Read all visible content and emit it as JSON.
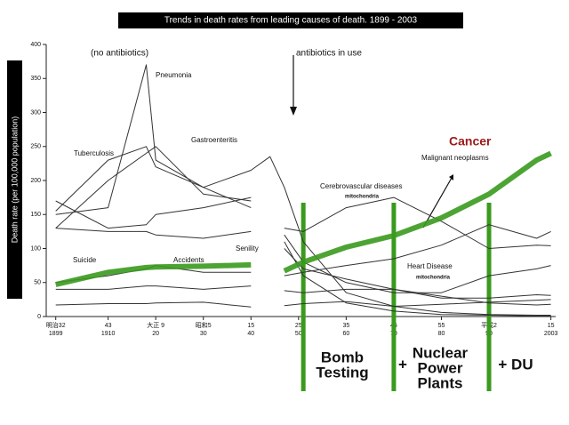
{
  "chart_data": {
    "type": "line",
    "title": "Trends in death rates from leading causes of death. 1899 - 2003",
    "y_label": "Death rate (per 100,000 population)",
    "annotations": [
      "(no antibiotics)",
      "antibiotics in use",
      "Cancer",
      "mitochondria",
      "mitochondria",
      "Bomb",
      "Testing",
      "+",
      "Nuclear",
      "Power",
      "Plants",
      "+ DU"
    ],
    "xlim": [
      1897,
      2004
    ],
    "ylim": [
      0,
      400
    ],
    "yticks": [
      0,
      50,
      100,
      150,
      200,
      250,
      300,
      350,
      400
    ],
    "xticks": [
      {
        "value": 1899,
        "label": "明治32\n1899"
      },
      {
        "value": 1910,
        "label": "43\n1910"
      },
      {
        "value": 1920,
        "label": "大正 9\n20"
      },
      {
        "value": 1930,
        "label": "昭和5\n30"
      },
      {
        "value": 1940,
        "label": "15\n40"
      },
      {
        "value": 1950,
        "label": "25\n50"
      },
      {
        "value": 1960,
        "label": "35\n60"
      },
      {
        "value": 1970,
        "label": "45\n70"
      },
      {
        "value": 1980,
        "label": "55\n80"
      },
      {
        "value": 1990,
        "label": "平成2\n90"
      },
      {
        "value": 2003,
        "label": "15\n2003"
      }
    ],
    "event_years": [
      1951,
      1970,
      1990
    ],
    "event_color": "#3a9a1e",
    "x": [
      1899,
      1910,
      1918,
      1920,
      1930,
      1940,
      1944,
      1947,
      1951,
      1960,
      1970,
      1980,
      1990,
      2000,
      2003
    ],
    "series": [
      {
        "name": "Pneumonia",
        "color": "#333333",
        "values": [
          150,
          160,
          370,
          230,
          190,
          160,
          null,
          120,
          80,
          50,
          35,
          35,
          60,
          70,
          75
        ]
      },
      {
        "name": "Tuberculosis",
        "color": "#333333",
        "values": [
          155,
          230,
          250,
          220,
          190,
          215,
          235,
          190,
          110,
          35,
          15,
          6,
          3,
          2,
          2
        ]
      },
      {
        "name": "Gastroenteritis",
        "color": "#333333",
        "values": [
          130,
          200,
          240,
          250,
          180,
          170,
          null,
          110,
          60,
          20,
          8,
          3,
          2,
          1,
          1
        ]
      },
      {
        "name": "Cerebrovascular diseases",
        "color": "#333333",
        "values": [
          170,
          130,
          135,
          150,
          160,
          175,
          null,
          130,
          125,
          160,
          175,
          140,
          100,
          105,
          104
        ]
      },
      {
        "name": "Heart Disease",
        "color": "#333333",
        "values": [
          50,
          60,
          70,
          75,
          65,
          65,
          null,
          60,
          65,
          75,
          85,
          105,
          135,
          115,
          125
        ]
      },
      {
        "name": "Senility",
        "color": "#333333",
        "values": [
          130,
          125,
          125,
          120,
          115,
          125,
          null,
          100,
          70,
          55,
          40,
          30,
          20,
          17,
          18
        ]
      },
      {
        "name": "Suicide",
        "color": "#333333",
        "values": [
          17,
          19,
          19,
          20,
          21,
          14,
          null,
          16,
          19,
          22,
          15,
          18,
          21,
          24,
          25
        ]
      },
      {
        "name": "Accidents",
        "color": "#333333",
        "values": [
          40,
          40,
          45,
          45,
          40,
          45,
          null,
          38,
          35,
          40,
          40,
          27,
          27,
          32,
          31
        ]
      },
      {
        "name": "Malignant neoplasms",
        "color": "#3a9a1e",
        "values": [
          47,
          65,
          72,
          73,
          74,
          76,
          null,
          67,
          80,
          102,
          119,
          145,
          180,
          230,
          240
        ]
      }
    ]
  }
}
